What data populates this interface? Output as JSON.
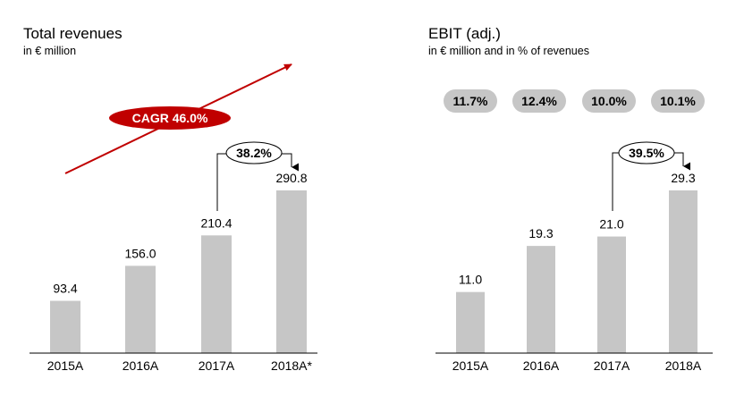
{
  "chart_data": [
    {
      "type": "bar",
      "title": "Total revenues",
      "subtitle": "in € million",
      "categories": [
        "2015A",
        "2016A",
        "2017A",
        "2018A*"
      ],
      "values": [
        93.4,
        156.0,
        210.4,
        290.8
      ],
      "value_labels": [
        "93.4",
        "156.0",
        "210.4",
        "290.8"
      ],
      "ylim": [
        0,
        290.8
      ],
      "bar_color": "#c6c6c6",
      "grid": false,
      "annotations": {
        "cagr": "CAGR 46.0%",
        "cagr_color": "#c00000",
        "growth": "38.2%"
      }
    },
    {
      "type": "bar",
      "title": "EBIT (adj.)",
      "subtitle": "in € million and in % of revenues",
      "categories": [
        "2015A",
        "2016A",
        "2017A",
        "2018A"
      ],
      "values": [
        11.0,
        19.3,
        21.0,
        29.3
      ],
      "value_labels": [
        "11.0",
        "19.3",
        "21.0",
        "29.3"
      ],
      "margins": [
        "11.7%",
        "12.4%",
        "10.0%",
        "10.1%"
      ],
      "ylim": [
        0,
        29.3
      ],
      "bar_color": "#c6c6c6",
      "grid": false,
      "annotations": {
        "growth": "39.5%"
      }
    }
  ]
}
